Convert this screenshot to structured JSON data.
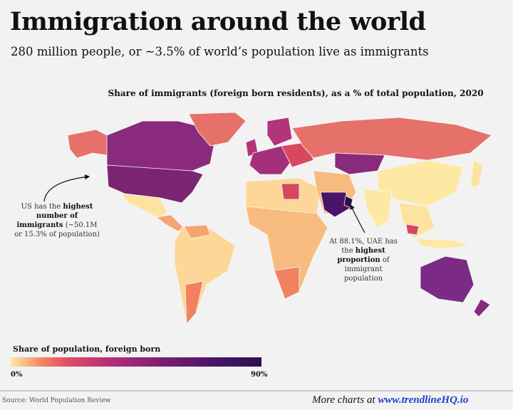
{
  "header": {
    "title": "Immigration around the world",
    "subtitle": "280 million people, or ~3.5% of world’s population live as immigrants"
  },
  "map": {
    "title": "Share of immigrants (foreign born residents), as a % of total population, 2020"
  },
  "annotations": {
    "us": {
      "pre": "US has the ",
      "bold": "highest number of immigrants",
      "post": " (~50.1M or 15.3% of population)"
    },
    "uae": {
      "pre": "At 88.1%, UAE has the ",
      "bold": "highest proportion",
      "post": " of immigrant population"
    }
  },
  "legend": {
    "title": "Share of population, foreign born",
    "min_label": "0%",
    "max_label": "90%",
    "colors": [
      "#fde9a4",
      "#f58860",
      "#e24e68",
      "#b32e78",
      "#7d1e73",
      "#4c1568",
      "#2b1050"
    ]
  },
  "footer": {
    "source": "Source: World Population Review",
    "more_prefix": "More charts at ",
    "more_link": "www.trendlineHQ.io"
  }
}
